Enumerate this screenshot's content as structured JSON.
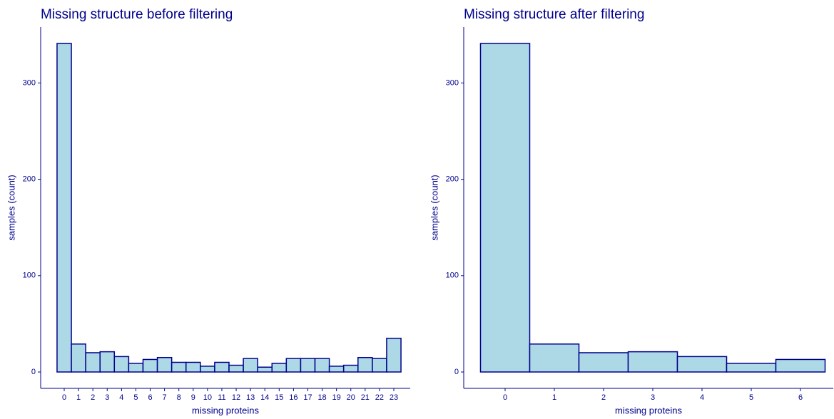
{
  "chart_data": [
    {
      "type": "bar",
      "title": "Missing structure before filtering",
      "x_label": "missing proteins",
      "y_label": "samples (count)",
      "categories": [
        "0",
        "1",
        "2",
        "3",
        "4",
        "5",
        "6",
        "7",
        "8",
        "9",
        "10",
        "11",
        "12",
        "13",
        "14",
        "15",
        "16",
        "17",
        "18",
        "19",
        "20",
        "21",
        "22",
        "23"
      ],
      "values": [
        341,
        29,
        20,
        21,
        16,
        9,
        13,
        15,
        10,
        10,
        6,
        10,
        7,
        14,
        5,
        9,
        14,
        14,
        14,
        6,
        7,
        15,
        14,
        35
      ],
      "color": "#add8e6",
      "edge_color": "#00008b",
      "ylim": [
        -17,
        358
      ],
      "yticks": [
        0,
        100,
        200,
        300
      ]
    },
    {
      "type": "bar",
      "title": "Missing structure after filtering",
      "x_label": "missing proteins",
      "y_label": "samples (count)",
      "categories": [
        "0",
        "1",
        "2",
        "3",
        "4",
        "5",
        "6"
      ],
      "values": [
        341,
        29,
        20,
        21,
        16,
        9,
        13
      ],
      "color": "#add8e6",
      "edge_color": "#00008b",
      "ylim": [
        -17,
        358
      ],
      "yticks": [
        0,
        100,
        200,
        300
      ]
    }
  ]
}
